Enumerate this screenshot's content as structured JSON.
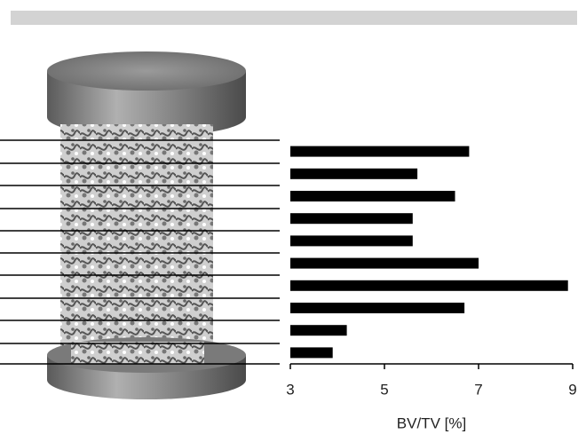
{
  "chart_data": {
    "type": "bar",
    "orientation": "horizontal",
    "xlabel": "BV/TV [%]",
    "categories": [
      null,
      null,
      null,
      null,
      null,
      null,
      null,
      null,
      null,
      null
    ],
    "values": [
      6.8,
      5.7,
      6.5,
      5.6,
      5.6,
      7.0,
      8.9,
      6.7,
      4.2,
      3.9
    ],
    "color": "#000000",
    "xlim": [
      3,
      9
    ],
    "xticks": [
      3,
      5,
      7,
      9
    ]
  }
}
